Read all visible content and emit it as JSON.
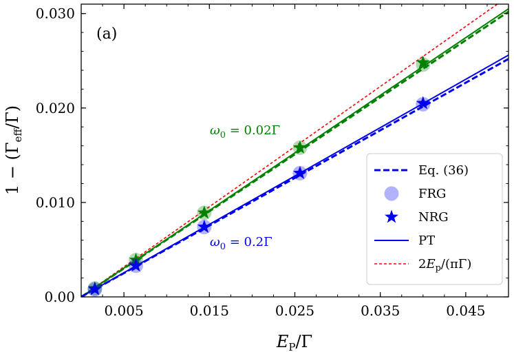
{
  "chart_data": {
    "type": "scatter",
    "panel_label": "(a)",
    "xlabel": "E_P/Γ",
    "ylabel": "1 − (Γ_eff/Γ)",
    "xlim": [
      0.0,
      0.05
    ],
    "ylim": [
      0.0,
      0.031
    ],
    "x_ticks": [
      0.005,
      0.015,
      0.025,
      0.035,
      0.045
    ],
    "x_tick_labels": [
      "0.005",
      "0.015",
      "0.025",
      "0.035",
      "0.045"
    ],
    "y_ticks": [
      0.0,
      0.01,
      0.02,
      0.03
    ],
    "y_tick_labels": [
      "0.00",
      "0.010",
      "0.020",
      "0.030"
    ],
    "reference_line": {
      "label": "2E_p/(πΓ)",
      "slope": 0.6366,
      "color": "#ff0000"
    },
    "series": [
      {
        "name": "ω0 = 0.02Γ",
        "annotation": "ω0 = 0.02Γ",
        "color": "#008000",
        "pt_slope": 0.61,
        "eq36_x": [
          0.0,
          0.05
        ],
        "eq36_y": [
          0.0,
          0.0302
        ],
        "frg_x": [
          0.0016,
          0.0064,
          0.0144,
          0.0256,
          0.04
        ],
        "frg_y": [
          0.0009,
          0.0039,
          0.0089,
          0.0158,
          0.0246
        ],
        "nrg_x": [
          0.0016,
          0.0064,
          0.0144,
          0.0256,
          0.04
        ],
        "nrg_y": [
          0.0009,
          0.0039,
          0.0089,
          0.0158,
          0.0248
        ]
      },
      {
        "name": "ω0 = 0.2Γ",
        "annotation": "ω0 = 0.2Γ",
        "color": "#0000ee",
        "pt_slope": 0.512,
        "eq36_x": [
          0.0,
          0.05
        ],
        "eq36_y": [
          0.0,
          0.0252
        ],
        "frg_x": [
          0.0016,
          0.0064,
          0.0144,
          0.0256,
          0.04
        ],
        "frg_y": [
          0.0008,
          0.0033,
          0.0074,
          0.0131,
          0.0204
        ],
        "nrg_x": [
          0.0016,
          0.0064,
          0.0144,
          0.0256,
          0.04
        ],
        "nrg_y": [
          0.0008,
          0.0033,
          0.0074,
          0.0131,
          0.0205
        ]
      }
    ],
    "legend": {
      "position": "lower-right",
      "entries": [
        {
          "label": "Eq. (36)",
          "kind": "dashed-line",
          "color": "#0000ee"
        },
        {
          "label": "FRG",
          "kind": "circle",
          "color": "#0000ee"
        },
        {
          "label": "NRG",
          "kind": "star",
          "color": "#0000ee"
        },
        {
          "label": "PT",
          "kind": "solid-line",
          "color": "#0000ee"
        },
        {
          "label": "2E_p/(πΓ)",
          "kind": "dotted-line",
          "color": "#ff0000"
        }
      ]
    }
  }
}
